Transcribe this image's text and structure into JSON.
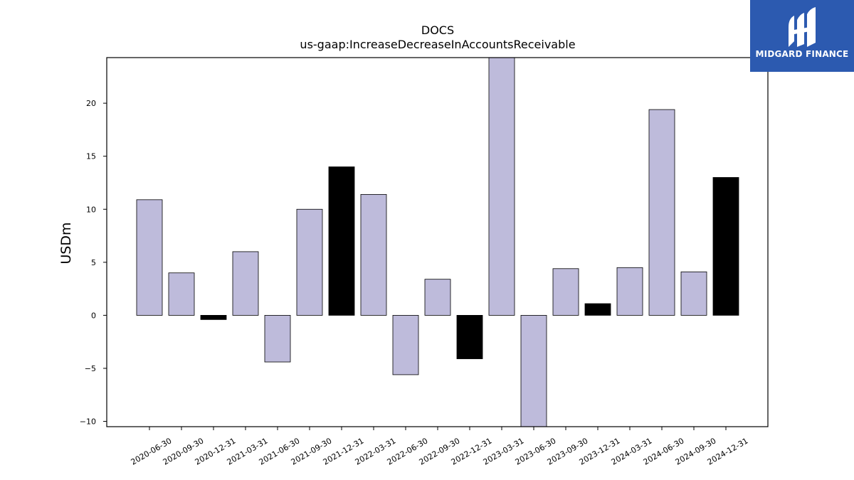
{
  "logo": {
    "text": "MIDGARD FINANCE",
    "background": "#2c5ab0",
    "icon": "midgard-logo-icon"
  },
  "chart_data": {
    "type": "bar",
    "title": "DOCS",
    "subtitle": "us-gaap:IncreaseDecreaseInAccountsReceivable",
    "xlabel": "",
    "ylabel": "USDm",
    "ylim": [
      -10.5,
      24.3
    ],
    "yticks": [
      -10,
      -5,
      0,
      5,
      10,
      15,
      20
    ],
    "grid": false,
    "legend": "none",
    "colors": {
      "default": "#bebbdb",
      "highlight": "#000000",
      "edge": "#000000"
    },
    "categories": [
      "2020-06-30",
      "2020-09-30",
      "2020-12-31",
      "2021-03-31",
      "2021-06-30",
      "2021-09-30",
      "2021-12-31",
      "2022-03-31",
      "2022-06-30",
      "2022-09-30",
      "2022-12-31",
      "2023-03-31",
      "2023-06-30",
      "2023-09-30",
      "2023-12-31",
      "2024-03-31",
      "2024-06-30",
      "2024-09-30",
      "2024-12-31"
    ],
    "values": [
      10.9,
      4.0,
      -0.4,
      6.0,
      -4.4,
      10.0,
      14.0,
      11.4,
      -5.6,
      3.4,
      -4.1,
      25.0,
      -11.0,
      4.4,
      1.1,
      4.5,
      19.4,
      4.1,
      13.0
    ],
    "highlight": [
      false,
      false,
      true,
      false,
      false,
      false,
      true,
      false,
      false,
      false,
      true,
      false,
      false,
      false,
      true,
      false,
      false,
      false,
      true
    ]
  }
}
